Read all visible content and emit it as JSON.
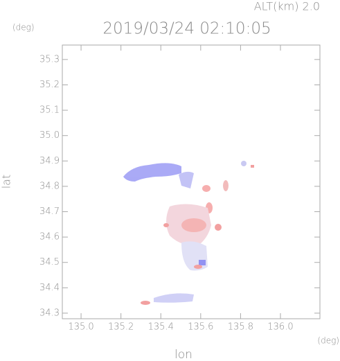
{
  "chart_data": {
    "type": "map",
    "title": "2019/03/24 02:10:05",
    "altitude_text": "ALT(km) 2.0",
    "y_unit": "(deg)",
    "x_unit": "(deg)",
    "xlabel": "lon",
    "ylabel": "lat",
    "xlim": [
      134.906,
      136.198
    ],
    "ylim": [
      34.278,
      35.357
    ],
    "xticks": [
      {
        "value": 135,
        "label": "135.0"
      },
      135.2,
      135.4,
      135.6,
      135.8,
      {
        "value": 136,
        "label": "136.0"
      }
    ],
    "yticks": [
      35.3,
      35.2,
      35.1,
      {
        "value": 35,
        "label": "35.0"
      },
      34.9,
      34.8,
      34.7,
      34.6,
      34.5,
      34.4,
      34.3
    ],
    "frame_color": "#aaaaaa"
  }
}
